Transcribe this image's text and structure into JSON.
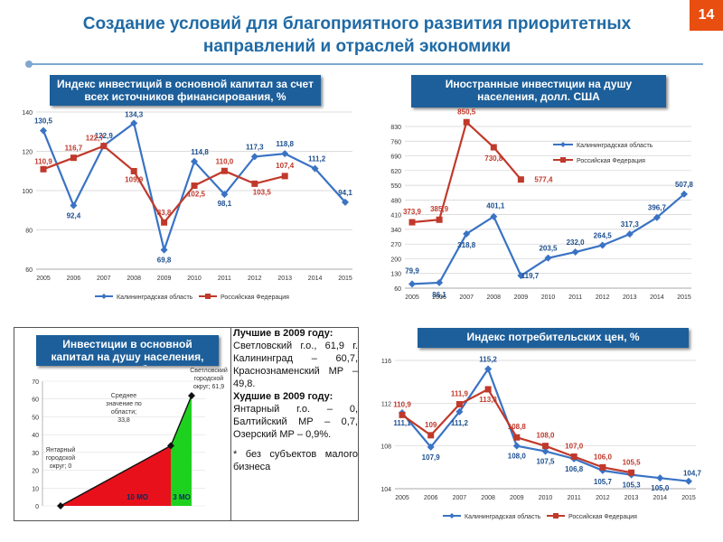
{
  "header": {
    "title_line1": "Создание условий для благоприятного развития приоритетных",
    "title_line2": "направлений и отраслей экономики",
    "page_number": "14"
  },
  "colors": {
    "blue": "#3a73c4",
    "red": "#c0392b",
    "accent": "#1d5f9a",
    "badge": "#e84e10"
  },
  "panels": {
    "p1_label": "Индекс инвестиций в основной капитал за счет всех источников финансирования, %",
    "p2_label": "Иностранные инвестиции на душу населения, долл. США",
    "p3_label": "Инвестиции в основной капитал на душу населения, тыс.руб.",
    "p4_label": "Индекс потребительских цен, %"
  },
  "notes": {
    "best_title": "Лучшие в 2009 году:",
    "best_text": "Светловский г.о., 61,9 г. Калининград – 60,7, Краснознаменский МР – 49,8.",
    "worst_title": "Худшие в 2009 году:",
    "worst_text": "Янтарный г.о. – 0, Балтийский МР – 0,7, Озерский МР – 0,9%.",
    "footnote": "* без субъектов малого бизнеса"
  },
  "chart_data": [
    {
      "type": "line",
      "title": "Индекс инвестиций в основной капитал за счет всех источников финансирования, %",
      "categories": [
        "2005",
        "2006",
        "2007",
        "2008",
        "2009",
        "2010",
        "2011",
        "2012",
        "2013",
        "2014",
        "2015"
      ],
      "ylim": [
        60,
        140
      ],
      "yticks": [
        60,
        80,
        100,
        120,
        140
      ],
      "series": [
        {
          "name": "Калининградская область",
          "values": [
            130.5,
            92.4,
            122.9,
            134.3,
            69.8,
            114.8,
            98.1,
            117.3,
            118.8,
            111.2,
            94.1
          ],
          "labels": [
            "130,5",
            "92,4",
            "122,9",
            "134,3",
            "69,8",
            "114,8",
            "98,1",
            "117,3",
            "118,8",
            "111,2",
            "94,1"
          ]
        },
        {
          "name": "Российская Федерация",
          "values": [
            110.9,
            116.7,
            122.7,
            109.9,
            83.8,
            102.5,
            110.0,
            103.5,
            107.4,
            null,
            null
          ],
          "labels": [
            "110,9",
            "116,7",
            "122,7",
            "109,9",
            "83,8",
            "102,5",
            "110,0",
            "103,5",
            "107,4",
            "",
            ""
          ]
        }
      ]
    },
    {
      "type": "line",
      "title": "Иностранные инвестиции на душу населения, долл. США",
      "categories": [
        "2005",
        "2006",
        "2007",
        "2008",
        "2009",
        "2010",
        "2011",
        "2012",
        "2013",
        "2014",
        "2015"
      ],
      "ylim": [
        60,
        830
      ],
      "yticks": [
        60,
        130,
        200,
        270,
        340,
        410,
        480,
        550,
        620,
        690,
        760,
        830
      ],
      "series": [
        {
          "name": "Калининградская область",
          "values": [
            79.9,
            86.1,
            318.8,
            401.1,
            119.7,
            203.5,
            232.0,
            264.5,
            317.3,
            396.7,
            507.8
          ],
          "labels": [
            "79,9",
            "86,1",
            "318,8",
            "401,1",
            "119,7",
            "203,5",
            "232,0",
            "264,5",
            "317,3",
            "396,7",
            "507,8"
          ]
        },
        {
          "name": "Российская Федерация",
          "values": [
            373.9,
            385.9,
            850.5,
            730.8,
            577.4,
            null,
            null,
            null,
            null,
            null,
            null
          ],
          "labels": [
            "373,9",
            "385,9",
            "850,5",
            "730,8",
            "577,4",
            "",
            "",
            "",
            "",
            "",
            ""
          ]
        }
      ]
    },
    {
      "type": "area",
      "title": "Инвестиции в основной капитал на душу населения, тыс.руб.",
      "ylim": [
        0,
        70
      ],
      "yticks": [
        0,
        10,
        20,
        30,
        40,
        50,
        60,
        70
      ],
      "annotations": {
        "min": "Янтарный городской округ; 0",
        "avg": "Среднее значение по области; 33,8",
        "max": "Светловский городской округ; 61,9",
        "red_count": "10 МО",
        "green_count": "3 МО"
      },
      "values": {
        "min": 0,
        "avg": 33.8,
        "max": 61.9
      }
    },
    {
      "type": "line",
      "title": "Индекс потребительских цен, %",
      "categories": [
        "2005",
        "2006",
        "2007",
        "2008",
        "2009",
        "2010",
        "2011",
        "2012",
        "2013",
        "2014",
        "2015"
      ],
      "ylim": [
        104,
        116
      ],
      "yticks": [
        104,
        108,
        112,
        116
      ],
      "series": [
        {
          "name": "Калининградская область",
          "values": [
            111.1,
            107.9,
            111.2,
            115.2,
            108.0,
            107.5,
            106.8,
            105.7,
            105.3,
            105.0,
            104.7
          ],
          "labels": [
            "111,1",
            "107,9",
            "111,2",
            "115,2",
            "108,0",
            "107,5",
            "106,8",
            "105,7",
            "105,3",
            "105,0",
            "104,7"
          ]
        },
        {
          "name": "Российская Федерация",
          "values": [
            110.9,
            109.0,
            111.9,
            113.3,
            108.8,
            108.0,
            107.0,
            106.0,
            105.5,
            null,
            null
          ],
          "labels": [
            "110,9",
            "109",
            "111,9",
            "113,3",
            "108,8",
            "108,0",
            "107,0",
            "106,0",
            "105,5",
            "",
            ""
          ]
        }
      ]
    }
  ]
}
